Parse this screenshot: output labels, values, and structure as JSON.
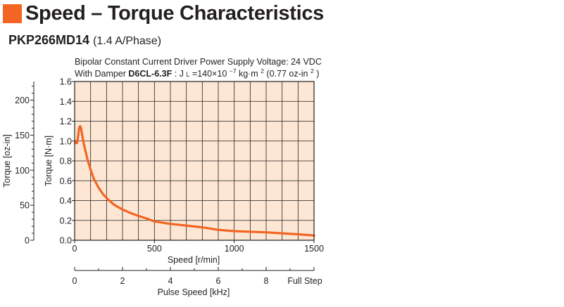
{
  "header": {
    "title": "Speed – Torque Characteristics",
    "accent_color": "#f26522"
  },
  "model": {
    "name": "PKP266MD14",
    "spec": "(1.4 A/Phase)"
  },
  "conditions": {
    "line1": "Bipolar Constant Current Driver   Power Supply Voltage: 24 VDC",
    "line2_prefix": "With Damper ",
    "damper_model": "D6CL-6.3F",
    "line2_jl_label": ": J",
    "jl_subscript": "L",
    "jl_value": "=140×10",
    "jl_exponent": "−7",
    "jl_unit": " kg·m",
    "jl_unit_exp": "2",
    "jl_alt": " (0.77 oz-in",
    "jl_alt_exp": "2",
    "jl_alt_close": ")"
  },
  "chart_data": {
    "type": "line",
    "xlabel": "Speed [r/min]",
    "ylabel": "Torque [N·m]",
    "y2label": "Torque [oz-in]",
    "x2label": "Pulse Speed [kHz]",
    "x2_end_label": "Full Step",
    "xlim": [
      0,
      1500
    ],
    "ylim": [
      0,
      1.6
    ],
    "y2lim": [
      0,
      226.6
    ],
    "x2lim": [
      0,
      10
    ],
    "xticks": [
      0,
      500,
      1000,
      1500
    ],
    "x_minor_step": 100,
    "yticks": [
      0,
      0.2,
      0.4,
      0.6,
      0.8,
      1.0,
      1.2,
      1.4,
      1.6
    ],
    "y2ticks": [
      0,
      50,
      100,
      150,
      200
    ],
    "x2ticks": [
      0,
      2,
      4,
      6,
      8
    ],
    "grid": true,
    "plot_bg_color": "#fde7d4",
    "grid_color": "#231f20",
    "series": [
      {
        "color": "#f26522",
        "x": [
          5,
          10,
          15,
          20,
          25,
          30,
          35,
          40,
          45,
          55,
          65,
          80,
          100,
          120,
          150,
          180,
          210,
          250,
          300,
          350,
          400,
          450,
          500,
          600,
          700,
          800,
          900,
          1000,
          1100,
          1200,
          1300,
          1400,
          1500
        ],
        "y": [
          0.98,
          1.0,
          0.98,
          1.02,
          1.1,
          1.14,
          1.15,
          1.13,
          1.08,
          0.99,
          0.92,
          0.82,
          0.71,
          0.62,
          0.53,
          0.46,
          0.41,
          0.355,
          0.31,
          0.275,
          0.245,
          0.22,
          0.19,
          0.165,
          0.148,
          0.13,
          0.105,
          0.092,
          0.086,
          0.08,
          0.07,
          0.06,
          0.048
        ]
      }
    ]
  }
}
